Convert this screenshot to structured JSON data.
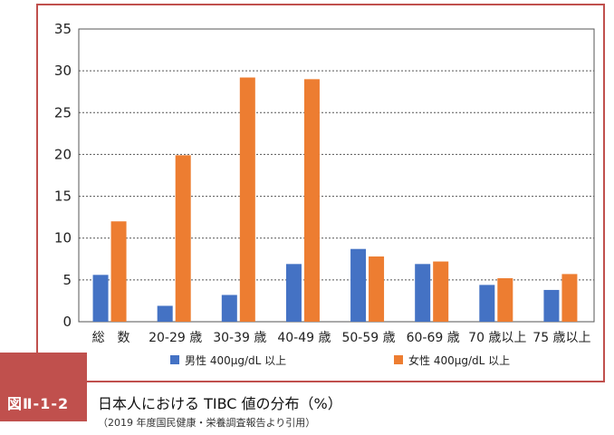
{
  "figure": {
    "number": "図Ⅱ-1-2",
    "title": "日本人における TIBC 値の分布（%）",
    "source": "（2019 年度国民健康・栄養調査報告より引用）"
  },
  "chart_data": {
    "type": "bar",
    "categories": [
      "総　数",
      "20-29 歳",
      "30-39 歳",
      "40-49 歳",
      "50-59 歳",
      "60-69 歳",
      "70 歳以上",
      "75 歳以上"
    ],
    "series": [
      {
        "name": "男性 400μg/dL 以上",
        "color": "#4472c4",
        "values": [
          5.6,
          1.9,
          3.2,
          6.9,
          8.7,
          6.9,
          4.4,
          3.8
        ]
      },
      {
        "name": "女性 400μg/dL 以上",
        "color": "#ed7d31",
        "values": [
          12.0,
          19.9,
          29.2,
          29.0,
          7.8,
          7.2,
          5.2,
          5.7
        ]
      }
    ],
    "ylim": [
      0,
      35
    ],
    "yticks": [
      0,
      5,
      10,
      15,
      20,
      25,
      30,
      35
    ],
    "grid": true,
    "legend": "bottom"
  },
  "colors": {
    "accent": "#c0504d"
  }
}
